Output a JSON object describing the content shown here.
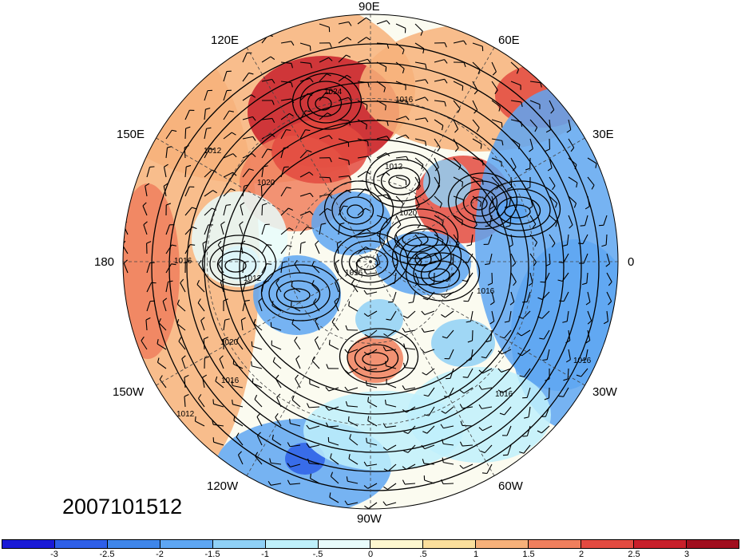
{
  "timestamp": "2007101512",
  "longitude_labels": {
    "lon_90e": "90E",
    "lon_120e": "120E",
    "lon_60e": "60E",
    "lon_150e": "150E",
    "lon_30e": "30E",
    "lon_180": "180",
    "lon_0": "0",
    "lon_150w": "150W",
    "lon_30w": "30W",
    "lon_120w": "120W",
    "lon_60w": "60W",
    "lon_90w": "90W"
  },
  "isobar_labels": [
    "1024",
    "1016",
    "1012",
    "1020",
    "1020",
    "1016",
    "1012",
    "1016",
    "1016",
    "1020",
    "1016",
    "1012",
    "1016",
    "1016",
    "1012"
  ],
  "colorbar": {
    "colors": [
      "#1a1ad6",
      "#2e5fe8",
      "#3f86ea",
      "#5ea6f2",
      "#8fd0f6",
      "#bff0fb",
      "#e8fbfb",
      "#fdf7cf",
      "#fbdf9c",
      "#f7b17a",
      "#f07f5d",
      "#e34a40",
      "#c81f2a",
      "#a10e1e"
    ],
    "tick_labels": [
      "-3",
      "-2.5",
      "-2",
      "-1.5",
      "-1",
      "-.5",
      "0",
      ".5",
      "1",
      "1.5",
      "2",
      "2.5",
      "3"
    ]
  }
}
